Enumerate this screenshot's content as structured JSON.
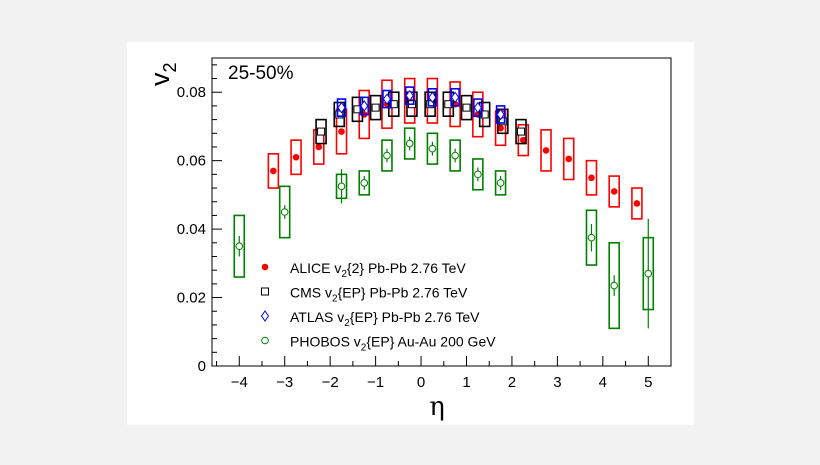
{
  "chart_data": {
    "type": "scatter",
    "annotation": "25-50%",
    "ylabel": "v",
    "ylabel_sub": "2",
    "xlabel": "η",
    "xlim": [
      -4.6,
      5.5
    ],
    "ylim": [
      0,
      0.09
    ],
    "xticks": [
      -4,
      -3,
      -2,
      -1,
      0,
      1,
      2,
      3,
      4,
      5
    ],
    "xtick_labels": [
      "−4",
      "−3",
      "−2",
      "−1",
      "0",
      "1",
      "2",
      "3",
      "4",
      "5"
    ],
    "yticks": [
      0,
      0.02,
      0.04,
      0.06,
      0.08
    ],
    "ytick_labels": [
      "0",
      "0.02",
      "0.04",
      "0.06",
      "0.08"
    ],
    "grid": false,
    "legend_position": "bottom-left",
    "series": [
      {
        "name_parts": [
          "ALICE v",
          "2",
          "{2} Pb-Pb 2.76 TeV"
        ],
        "marker": "filled-circle",
        "color": "#ff0000",
        "points": [
          {
            "x": -3.25,
            "y": 0.057,
            "syst": 0.005
          },
          {
            "x": -2.75,
            "y": 0.061,
            "syst": 0.005
          },
          {
            "x": -2.25,
            "y": 0.064,
            "syst": 0.005
          },
          {
            "x": -1.75,
            "y": 0.0685,
            "syst": 0.0065
          },
          {
            "x": -1.25,
            "y": 0.0735,
            "syst": 0.007
          },
          {
            "x": -0.75,
            "y": 0.0765,
            "syst": 0.007
          },
          {
            "x": -0.25,
            "y": 0.0775,
            "syst": 0.0065
          },
          {
            "x": 0.25,
            "y": 0.0775,
            "syst": 0.0065
          },
          {
            "x": 0.75,
            "y": 0.0765,
            "syst": 0.0065
          },
          {
            "x": 1.25,
            "y": 0.0735,
            "syst": 0.0065
          },
          {
            "x": 1.75,
            "y": 0.0695,
            "syst": 0.005
          },
          {
            "x": 2.25,
            "y": 0.066,
            "syst": 0.0045
          },
          {
            "x": 2.75,
            "y": 0.063,
            "syst": 0.006
          },
          {
            "x": 3.25,
            "y": 0.0605,
            "syst": 0.006
          },
          {
            "x": 3.75,
            "y": 0.055,
            "syst": 0.005
          },
          {
            "x": 4.25,
            "y": 0.051,
            "syst": 0.0045
          },
          {
            "x": 4.75,
            "y": 0.0475,
            "syst": 0.0045
          }
        ]
      },
      {
        "name_parts": [
          "CMS v",
          "2",
          "{EP} Pb-Pb 2.76 TeV"
        ],
        "marker": "open-square",
        "color": "#000000",
        "points": [
          {
            "x": -2.2,
            "y": 0.0685,
            "syst": 0.0035
          },
          {
            "x": -1.8,
            "y": 0.0735,
            "syst": 0.0035
          },
          {
            "x": -1.4,
            "y": 0.075,
            "syst": 0.0035
          },
          {
            "x": -1.0,
            "y": 0.0755,
            "syst": 0.0035
          },
          {
            "x": -0.6,
            "y": 0.0765,
            "syst": 0.0035
          },
          {
            "x": -0.2,
            "y": 0.0765,
            "syst": 0.0035
          },
          {
            "x": 0.2,
            "y": 0.0765,
            "syst": 0.0035
          },
          {
            "x": 0.6,
            "y": 0.0765,
            "syst": 0.0035
          },
          {
            "x": 1.0,
            "y": 0.0755,
            "syst": 0.0035
          },
          {
            "x": 1.4,
            "y": 0.0735,
            "syst": 0.0035
          },
          {
            "x": 1.8,
            "y": 0.0715,
            "syst": 0.0035
          },
          {
            "x": 2.2,
            "y": 0.0685,
            "syst": 0.0035
          }
        ]
      },
      {
        "name_parts": [
          "ATLAS v",
          "2",
          "{EP} Pb-Pb 2.76 TeV"
        ],
        "marker": "open-diamond",
        "color": "#0000ff",
        "points": [
          {
            "x": -1.75,
            "y": 0.0755,
            "syst": 0.0025
          },
          {
            "x": -1.25,
            "y": 0.076,
            "syst": 0.0025
          },
          {
            "x": -0.75,
            "y": 0.078,
            "syst": 0.0025
          },
          {
            "x": -0.25,
            "y": 0.079,
            "syst": 0.0025
          },
          {
            "x": 0.25,
            "y": 0.0785,
            "syst": 0.0025
          },
          {
            "x": 0.75,
            "y": 0.0785,
            "syst": 0.0025
          },
          {
            "x": 1.25,
            "y": 0.0755,
            "syst": 0.0025
          },
          {
            "x": 1.75,
            "y": 0.0735,
            "syst": 0.0025
          }
        ]
      },
      {
        "name_parts": [
          "PHOBOS v",
          "2",
          "{EP} Au-Au 200 GeV"
        ],
        "marker": "open-circle",
        "color": "#008000",
        "points": [
          {
            "x": -4.0,
            "y": 0.035,
            "syst": 0.009,
            "stat": 0.003
          },
          {
            "x": -3.0,
            "y": 0.045,
            "syst": 0.0075,
            "stat": 0.002
          },
          {
            "x": -1.75,
            "y": 0.0525,
            "syst": 0.0035,
            "stat": 0.005
          },
          {
            "x": -1.25,
            "y": 0.0535,
            "syst": 0.0035,
            "stat": 0.002
          },
          {
            "x": -0.75,
            "y": 0.0615,
            "syst": 0.0045,
            "stat": 0.002
          },
          {
            "x": -0.25,
            "y": 0.065,
            "syst": 0.0045,
            "stat": 0.002
          },
          {
            "x": 0.25,
            "y": 0.0635,
            "syst": 0.0045,
            "stat": 0.002
          },
          {
            "x": 0.75,
            "y": 0.0615,
            "syst": 0.0045,
            "stat": 0.002
          },
          {
            "x": 1.25,
            "y": 0.056,
            "syst": 0.0045,
            "stat": 0.002
          },
          {
            "x": 1.75,
            "y": 0.0535,
            "syst": 0.0035,
            "stat": 0.002
          },
          {
            "x": 3.75,
            "y": 0.0375,
            "syst": 0.008,
            "stat": 0.004
          },
          {
            "x": 4.25,
            "y": 0.0235,
            "syst": 0.0125,
            "stat": 0.003
          },
          {
            "x": 5.0,
            "y": 0.027,
            "syst": 0.0105,
            "stat": 0.016
          }
        ]
      }
    ]
  }
}
